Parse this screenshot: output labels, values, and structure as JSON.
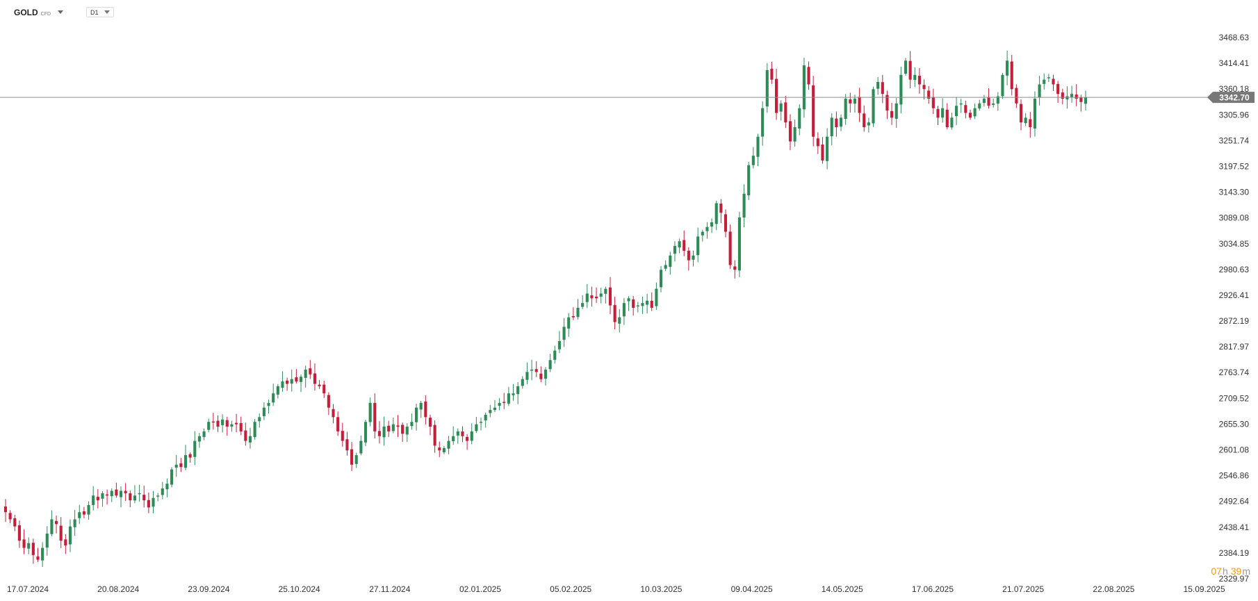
{
  "toolbar": {
    "symbol": "GOLD",
    "symbol_type": "CFD",
    "timeframe": "D1"
  },
  "countdown": {
    "hours": "07",
    "hours_unit": "h",
    "minutes": "39",
    "minutes_unit": "m"
  },
  "colors": {
    "up": "#2e8b57",
    "down": "#c41e3a",
    "price_line": "#8a8a8a",
    "price_badge": "#777777",
    "countdown": "#f39c12"
  },
  "chart_data": {
    "type": "candlestick",
    "title": "",
    "xlabel": "",
    "ylabel": "",
    "x_tick_labels": [
      "17.07.2024",
      "20.08.2024",
      "23.09.2024",
      "25.10.2024",
      "27.11.2024",
      "02.01.2025",
      "05.02.2025",
      "10.03.2025",
      "09.04.2025",
      "14.05.2025",
      "17.06.2025",
      "21.07.2025",
      "22.08.2025",
      "15.09.2025"
    ],
    "y_tick_labels": [
      "3468.63",
      "3414.41",
      "3360.18",
      "3305.96",
      "3251.74",
      "3197.52",
      "3143.30",
      "3089.08",
      "3034.85",
      "2980.63",
      "2926.41",
      "2872.19",
      "2817.97",
      "2763.74",
      "2709.52",
      "2655.30",
      "2601.08",
      "2546.86",
      "2492.64",
      "2438.41",
      "2384.19",
      "2329.97"
    ],
    "ylim": [
      2329.97,
      3468.63
    ],
    "last_price": "3342.70",
    "last_price_value": 3342.7,
    "close_series": [
      2470,
      2455,
      2440,
      2410,
      2395,
      2405,
      2380,
      2370,
      2395,
      2425,
      2455,
      2445,
      2410,
      2400,
      2440,
      2455,
      2470,
      2465,
      2485,
      2505,
      2495,
      2510,
      2505,
      2515,
      2505,
      2515,
      2510,
      2495,
      2505,
      2510,
      2495,
      2480,
      2500,
      2505,
      2520,
      2530,
      2560,
      2570,
      2565,
      2590,
      2585,
      2620,
      2630,
      2640,
      2660,
      2660,
      2650,
      2665,
      2650,
      2655,
      2655,
      2640,
      2620,
      2630,
      2660,
      2670,
      2690,
      2700,
      2720,
      2735,
      2745,
      2740,
      2750,
      2745,
      2755,
      2770,
      2760,
      2740,
      2735,
      2720,
      2690,
      2670,
      2640,
      2620,
      2600,
      2570,
      2590,
      2620,
      2660,
      2700,
      2640,
      2630,
      2650,
      2640,
      2655,
      2650,
      2635,
      2650,
      2660,
      2690,
      2700,
      2670,
      2650,
      2610,
      2600,
      2605,
      2620,
      2630,
      2640,
      2630,
      2620,
      2640,
      2655,
      2660,
      2675,
      2685,
      2690,
      2700,
      2700,
      2720,
      2720,
      2735,
      2750,
      2765,
      2770,
      2765,
      2750,
      2770,
      2790,
      2810,
      2830,
      2860,
      2880,
      2880,
      2900,
      2910,
      2930,
      2920,
      2920,
      2930,
      2940,
      2905,
      2870,
      2880,
      2910,
      2920,
      2900,
      2905,
      2910,
      2915,
      2900,
      2940,
      2980,
      2990,
      3010,
      3030,
      3040,
      3020,
      3000,
      3010,
      3050,
      3060,
      3070,
      3080,
      3120,
      3100,
      3060,
      2990,
      2980,
      3090,
      3140,
      3200,
      3220,
      3260,
      3320,
      3400,
      3380,
      3310,
      3330,
      3290,
      3250,
      3280,
      3320,
      3410,
      3370,
      3260,
      3240,
      3210,
      3260,
      3300,
      3280,
      3300,
      3340,
      3330,
      3340,
      3310,
      3280,
      3290,
      3360,
      3375,
      3350,
      3315,
      3300,
      3330,
      3390,
      3420,
      3380,
      3390,
      3370,
      3360,
      3340,
      3320,
      3300,
      3320,
      3280,
      3300,
      3325,
      3330,
      3310,
      3300,
      3320,
      3330,
      3340,
      3325,
      3330,
      3345,
      3390,
      3420,
      3360,
      3330,
      3290,
      3300,
      3280,
      3340,
      3370,
      3380,
      3385,
      3370,
      3350,
      3340,
      3345,
      3350,
      3340,
      3333,
      3342.7
    ]
  }
}
